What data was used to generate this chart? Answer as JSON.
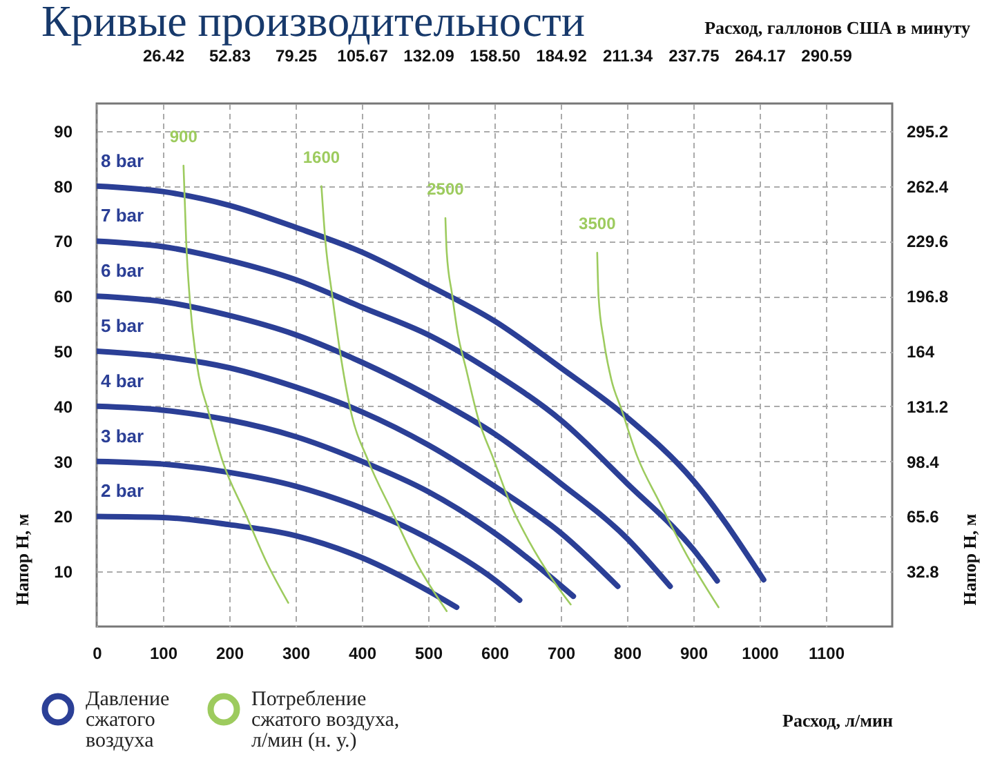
{
  "chart_data": {
    "type": "line",
    "title": "Кривые производительности",
    "xlabel": "Расход, л/мин",
    "x2label": "Расход, галлонов США в минуту",
    "ylabel": "Напор H, м",
    "y2label": "Напор H, м",
    "xlim": [
      0,
      1200
    ],
    "xticks": [
      0,
      100,
      200,
      300,
      400,
      500,
      600,
      700,
      800,
      900,
      1000,
      1100
    ],
    "x2lim": [
      0,
      317.0
    ],
    "x2ticks": [
      26.42,
      52.83,
      79.25,
      105.67,
      132.09,
      {
        "value": 158.5,
        "label": "158.50"
      },
      184.92,
      211.34,
      237.75,
      264.17,
      290.59
    ],
    "ylim": [
      0,
      95
    ],
    "yticks": [
      10,
      20,
      30,
      40,
      50,
      60,
      70,
      80,
      90
    ],
    "y2lim": [
      0,
      311.6
    ],
    "y2ticks": [
      32.8,
      65.6,
      98.4,
      131.2,
      164,
      196.8,
      229.6,
      262.4,
      295.2
    ],
    "grid": true,
    "series": [
      {
        "name": "8 bar",
        "color": "#2b3f96",
        "x": [
          0,
          100,
          200,
          300,
          400,
          500,
          600,
          700,
          800,
          900,
          1006
        ],
        "values": [
          80,
          79,
          76.5,
          72.5,
          68,
          62,
          55.5,
          47,
          38,
          26.5,
          8.5
        ]
      },
      {
        "name": "7 bar",
        "color": "#2b3f96",
        "x": [
          0,
          100,
          200,
          300,
          400,
          500,
          600,
          700,
          800,
          900,
          936
        ],
        "values": [
          70,
          69,
          66.5,
          63,
          58,
          53,
          46,
          37.5,
          26,
          14,
          8.3
        ]
      },
      {
        "name": "6 bar",
        "color": "#2b3f96",
        "x": [
          0,
          100,
          200,
          300,
          400,
          500,
          600,
          700,
          800,
          865
        ],
        "values": [
          60,
          59,
          56.5,
          53,
          48,
          42,
          35,
          26,
          16,
          7.3
        ]
      },
      {
        "name": "5 bar",
        "color": "#2b3f96",
        "x": [
          0,
          100,
          200,
          300,
          400,
          500,
          600,
          700,
          786
        ],
        "values": [
          50,
          49,
          47,
          43.5,
          39,
          33,
          25.5,
          17,
          7.3
        ]
      },
      {
        "name": "4 bar",
        "color": "#2b3f96",
        "x": [
          0,
          100,
          200,
          300,
          400,
          500,
          600,
          719
        ],
        "values": [
          40,
          39.3,
          37.5,
          34.5,
          30,
          24.5,
          17,
          5.5
        ]
      },
      {
        "name": "3 bar",
        "color": "#2b3f96",
        "x": [
          0,
          100,
          200,
          300,
          400,
          500,
          600,
          638
        ],
        "values": [
          30,
          29.5,
          28,
          25.5,
          21.5,
          16,
          8.5,
          4.8
        ]
      },
      {
        "name": "2 bar",
        "color": "#2b3f96",
        "x": [
          0,
          100,
          200,
          300,
          400,
          500,
          543
        ],
        "values": [
          20,
          19.8,
          18.5,
          16.5,
          12.5,
          6.5,
          3.5
        ]
      },
      {
        "name": "900",
        "color": "#9dcb5e",
        "x": [
          131,
          135,
          141,
          152,
          168,
          190,
          225,
          255,
          289
        ],
        "values": [
          83.7,
          70,
          58.6,
          47,
          39.3,
          30,
          20.3,
          12,
          4.3
        ]
      },
      {
        "name": "1600",
        "color": "#9dcb5e",
        "x": [
          339,
          345,
          355,
          367,
          383,
          410,
          445,
          485,
          528
        ],
        "values": [
          80,
          70,
          60.4,
          50,
          39.3,
          30,
          21,
          11,
          2.8
        ]
      },
      {
        "name": "2500",
        "color": "#9dcb5e",
        "x": [
          526,
          528,
          536,
          545,
          557,
          575,
          599,
          625,
          653,
          685,
          715
        ],
        "values": [
          74.2,
          68,
          60.4,
          53,
          46.9,
          38,
          30.3,
          22,
          15.3,
          9,
          4
        ]
      },
      {
        "name": "3500",
        "color": "#9dcb5e",
        "x": [
          755,
          757,
          765,
          776,
          792,
          815,
          848,
          890,
          938
        ],
        "values": [
          67.9,
          60,
          51.9,
          45,
          39.3,
          31,
          22.8,
          13,
          3.5
        ]
      }
    ],
    "annotations": [
      "Давление сжатого воздуха",
      "Потребление сжатого воздуха, л/мин (н. у.)"
    ]
  }
}
